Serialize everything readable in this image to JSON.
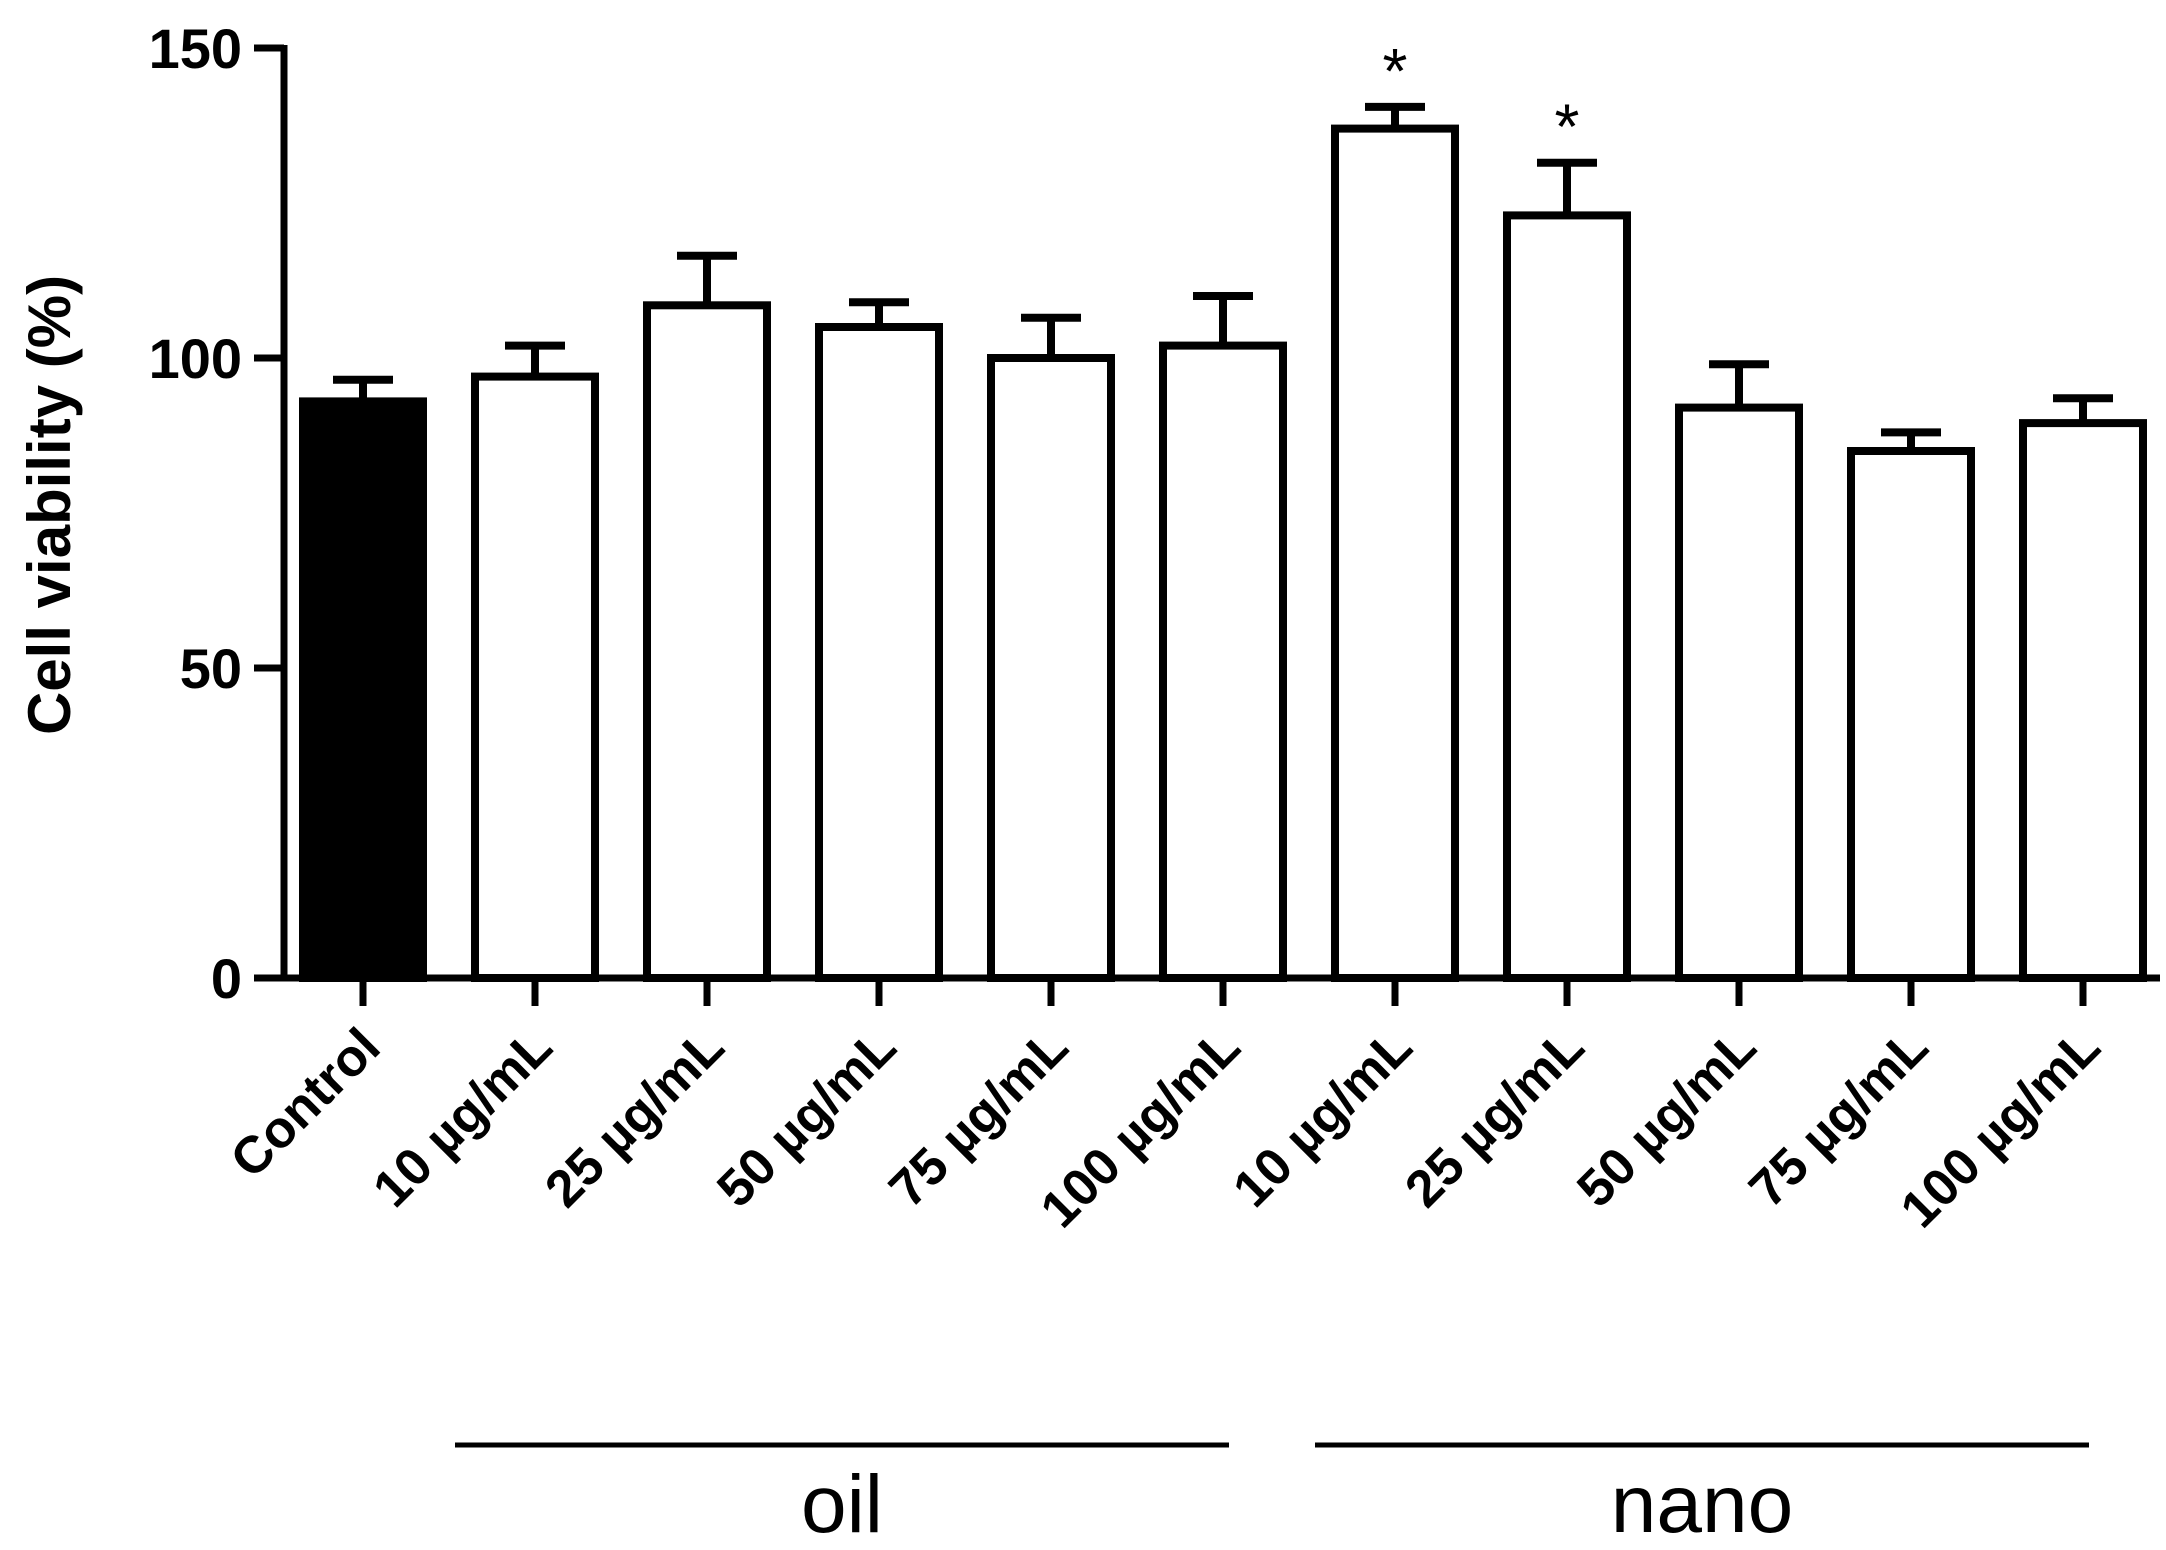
{
  "chart_data": {
    "type": "bar",
    "title": "",
    "xlabel": "",
    "ylabel": "Cell viability (%)",
    "ylim": [
      0,
      150
    ],
    "yticks": [
      0,
      50,
      100,
      150
    ],
    "grid": false,
    "categories": [
      "Control",
      "10 µg/mL",
      "25 µg/mL",
      "50 µg/mL",
      "75 µg/mL",
      "100 µg/mL",
      "10 µg/mL",
      "25 µg/mL",
      "50 µg/mL",
      "75 µg/mL",
      "100 µg/mL"
    ],
    "values": [
      93,
      97,
      108.5,
      105,
      100,
      102,
      137,
      123,
      92,
      85,
      89.5
    ],
    "errors": [
      3.5,
      5,
      8,
      4,
      6.5,
      8,
      3.5,
      8.5,
      7,
      3,
      4
    ],
    "fill": [
      "#000000",
      "#ffffff",
      "#ffffff",
      "#ffffff",
      "#ffffff",
      "#ffffff",
      "#ffffff",
      "#ffffff",
      "#ffffff",
      "#ffffff",
      "#ffffff"
    ],
    "significance": [
      "",
      "",
      "",
      "",
      "",
      "",
      "*",
      "*",
      "",
      "",
      ""
    ],
    "groups": [
      {
        "label": "oil",
        "start": 1,
        "end": 5
      },
      {
        "label": "nano",
        "start": 6,
        "end": 10
      }
    ]
  }
}
